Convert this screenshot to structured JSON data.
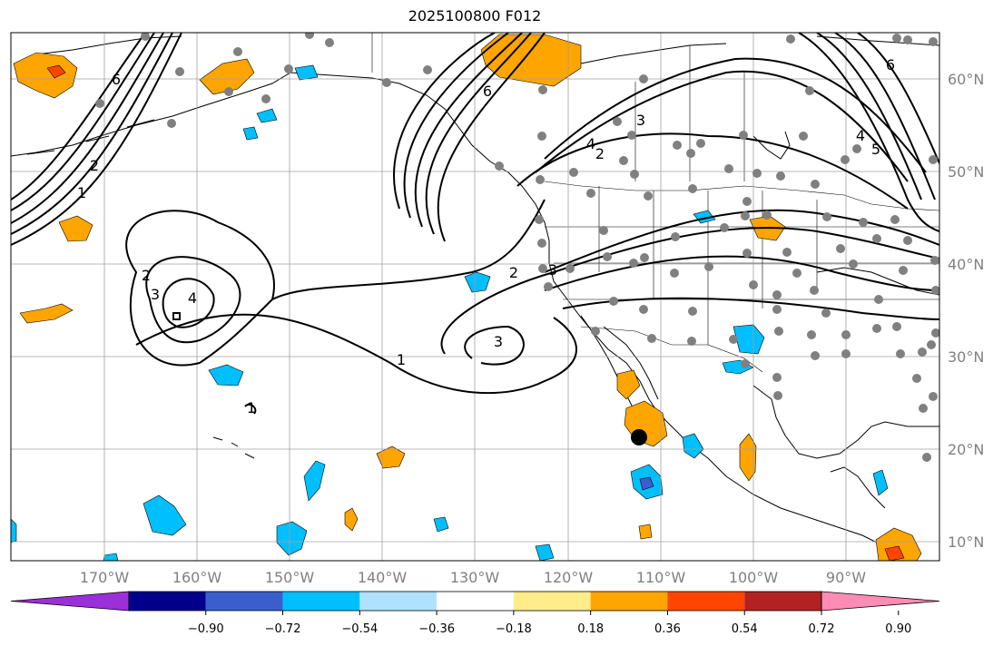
{
  "title": "2025100800 F012",
  "longitude_labels": [
    "170°W",
    "160°W",
    "150°W",
    "140°W",
    "130°W",
    "120°W",
    "110°W",
    "100°W",
    "90°W"
  ],
  "latitude_labels": [
    "60°N",
    "50°N",
    "40°N",
    "30°N",
    "20°N",
    "10°N"
  ],
  "colorbar": {
    "ticks": [
      "−0.90",
      "−0.72",
      "−0.54",
      "−0.36",
      "−0.18",
      "0.18",
      "0.36",
      "0.54",
      "0.72",
      "0.90"
    ],
    "colors": [
      "#9b30d9",
      "#00008b",
      "#3a5fcd",
      "#00bfff",
      "#b0e2ff",
      "#ffffff",
      "#ffec8b",
      "#ffa500",
      "#ff4500",
      "#b22222",
      "#ff8cb4"
    ]
  },
  "contour_labels": {
    "gulf_1": "1",
    "gulf_2": "2",
    "gulf_6": "6",
    "alaska_6": "6",
    "low_2": "2",
    "low_3": "3",
    "low_4": "4",
    "mid_1": "1",
    "coast_2": "2",
    "coast_3": "3",
    "baja_3": "3",
    "canada_3": "3",
    "canada_4": "4",
    "canada_2": "2",
    "east_6": "6",
    "east_4": "4",
    "east_5": "5",
    "hawaii_1": "1"
  },
  "colors": {
    "ocean": "#ffffff",
    "grid": "#a0a0a0",
    "station": "#808080",
    "contour": "#000000"
  }
}
